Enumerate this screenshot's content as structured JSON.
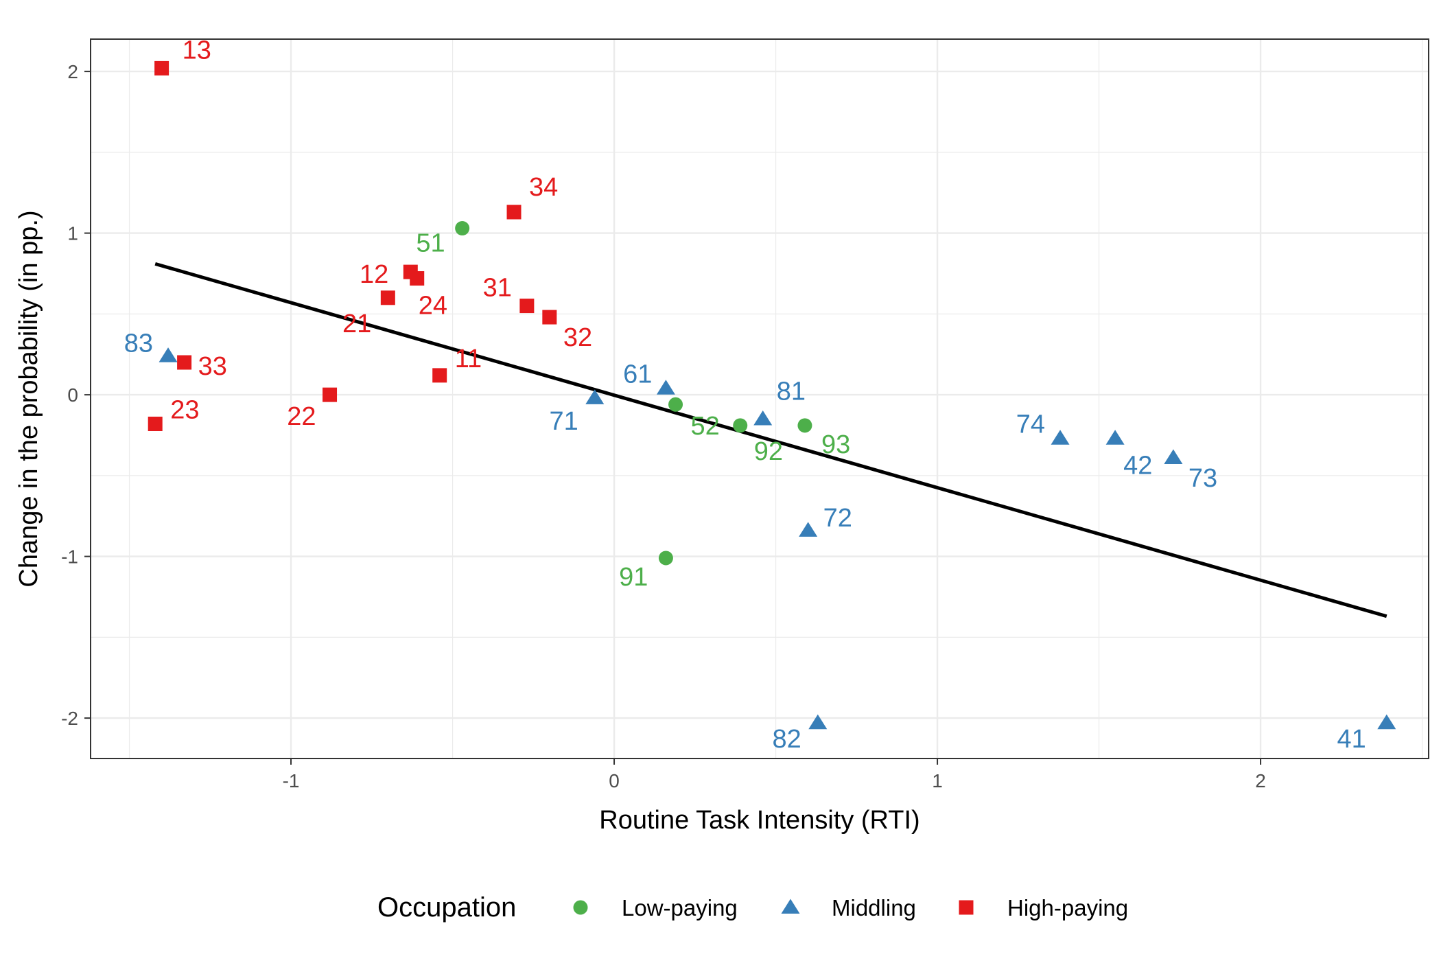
{
  "chart_data": {
    "type": "scatter",
    "title": "",
    "xlabel": "Routine Task Intensity (RTI)",
    "ylabel": "Change in the probability (in pp.)",
    "xlim": [
      -1.62,
      2.52
    ],
    "ylim": [
      -2.25,
      2.2
    ],
    "x_ticks": [
      -1,
      0,
      1,
      2
    ],
    "y_ticks": [
      -2,
      -1,
      0,
      1,
      2
    ],
    "x_tick_labels": [
      "-1",
      "0",
      "1",
      "2"
    ],
    "y_tick_labels": [
      "-2",
      "-1",
      "0",
      "1",
      "2"
    ],
    "grid": true,
    "legend_position": "bottom",
    "legend_title": "Occupation",
    "series": [
      {
        "name": "Low-paying",
        "color": "#4daf4a",
        "marker": "circle",
        "points": [
          {
            "label": "51",
            "x": -0.47,
            "y": 1.03
          },
          {
            "label": "52",
            "x": 0.19,
            "y": -0.06
          },
          {
            "label": "92",
            "x": 0.39,
            "y": -0.19
          },
          {
            "label": "93",
            "x": 0.59,
            "y": -0.19
          },
          {
            "label": "91",
            "x": 0.16,
            "y": -1.01
          }
        ]
      },
      {
        "name": "Middling",
        "color": "#377eb8",
        "marker": "triangle",
        "points": [
          {
            "label": "83",
            "x": -1.38,
            "y": 0.24
          },
          {
            "label": "61",
            "x": 0.16,
            "y": 0.04
          },
          {
            "label": "71",
            "x": -0.06,
            "y": -0.02
          },
          {
            "label": "81",
            "x": 0.46,
            "y": -0.15
          },
          {
            "label": "72",
            "x": 0.6,
            "y": -0.84
          },
          {
            "label": "82",
            "x": 0.63,
            "y": -2.03
          },
          {
            "label": "74",
            "x": 1.38,
            "y": -0.27
          },
          {
            "label": "42",
            "x": 1.55,
            "y": -0.27
          },
          {
            "label": "73",
            "x": 1.73,
            "y": -0.39
          },
          {
            "label": "41",
            "x": 2.39,
            "y": -2.03
          }
        ]
      },
      {
        "name": "High-paying",
        "color": "#e41a1c",
        "marker": "square",
        "points": [
          {
            "label": "13",
            "x": -1.4,
            "y": 2.02
          },
          {
            "label": "34",
            "x": -0.31,
            "y": 1.13
          },
          {
            "label": "12",
            "x": -0.63,
            "y": 0.76
          },
          {
            "label": "24",
            "x": -0.61,
            "y": 0.72
          },
          {
            "label": "21",
            "x": -0.7,
            "y": 0.6
          },
          {
            "label": "31",
            "x": -0.27,
            "y": 0.55
          },
          {
            "label": "32",
            "x": -0.2,
            "y": 0.48
          },
          {
            "label": "33",
            "x": -1.33,
            "y": 0.2
          },
          {
            "label": "11",
            "x": -0.54,
            "y": 0.12
          },
          {
            "label": "22",
            "x": -0.88,
            "y": 0.0
          },
          {
            "label": "23",
            "x": -1.42,
            "y": -0.18
          }
        ]
      }
    ],
    "fit_line": {
      "x": [
        -1.42,
        2.39
      ],
      "y": [
        0.81,
        -1.37
      ],
      "color": "#000000"
    }
  }
}
